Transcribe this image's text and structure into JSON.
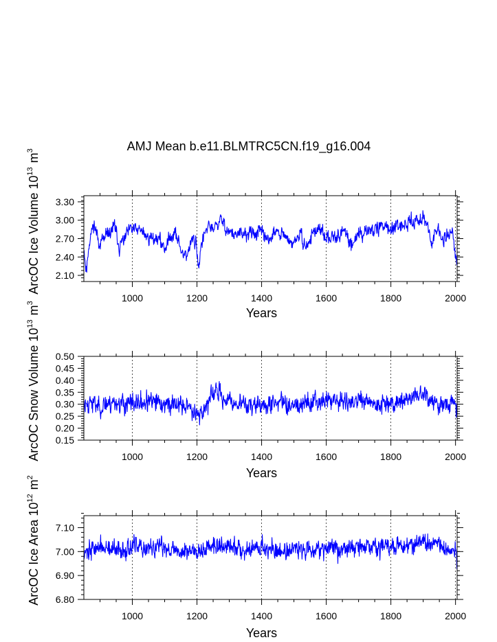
{
  "title": "AMJ Mean b.e11.BLMTRC5CN.f19_g16.004",
  "chart_data": [
    {
      "type": "line",
      "ylabel_main": "ArcOC Ice Volume 10",
      "ylabel_sup": "13",
      "ylabel_unit": "m",
      "ylabel_unit_sup": "3",
      "xlabel": "Years",
      "xlim": [
        850,
        2005
      ],
      "ylim": [
        2.0,
        3.4
      ],
      "xticks": [
        1000,
        1200,
        1400,
        1600,
        1800,
        2000
      ],
      "xtick_labels": [
        "1000",
        "1200",
        "1400",
        "1600",
        "1800",
        "2000"
      ],
      "yticks": [
        2.1,
        2.4,
        2.7,
        3.0,
        3.3
      ],
      "ytick_labels": [
        "2.10",
        "2.40",
        "2.70",
        "3.00",
        "3.30"
      ],
      "y_minor_step": 0.06,
      "line_color": "#0000ff",
      "series_name": "Ice Volume",
      "x_start": 850,
      "x_step": 1,
      "seed": 11,
      "anchors": [
        [
          850,
          2.55
        ],
        [
          855,
          2.3
        ],
        [
          858,
          2.15
        ],
        [
          865,
          2.6
        ],
        [
          880,
          2.95
        ],
        [
          900,
          2.62
        ],
        [
          920,
          2.72
        ],
        [
          945,
          2.9
        ],
        [
          960,
          2.55
        ],
        [
          985,
          2.8
        ],
        [
          1000,
          2.85
        ],
        [
          1025,
          2.82
        ],
        [
          1050,
          2.72
        ],
        [
          1080,
          2.7
        ],
        [
          1100,
          2.55
        ],
        [
          1130,
          2.85
        ],
        [
          1150,
          2.5
        ],
        [
          1170,
          2.45
        ],
        [
          1185,
          2.68
        ],
        [
          1198,
          2.65
        ],
        [
          1205,
          2.2
        ],
        [
          1212,
          2.6
        ],
        [
          1230,
          2.85
        ],
        [
          1260,
          2.9
        ],
        [
          1275,
          3.0
        ],
        [
          1300,
          2.8
        ],
        [
          1330,
          2.75
        ],
        [
          1360,
          2.78
        ],
        [
          1400,
          2.8
        ],
        [
          1420,
          2.7
        ],
        [
          1445,
          2.8
        ],
        [
          1470,
          2.75
        ],
        [
          1490,
          2.6
        ],
        [
          1520,
          2.75
        ],
        [
          1540,
          2.55
        ],
        [
          1560,
          2.82
        ],
        [
          1580,
          2.85
        ],
        [
          1600,
          2.65
        ],
        [
          1620,
          2.8
        ],
        [
          1640,
          2.75
        ],
        [
          1660,
          2.82
        ],
        [
          1680,
          2.6
        ],
        [
          1700,
          2.78
        ],
        [
          1720,
          2.8
        ],
        [
          1745,
          2.88
        ],
        [
          1760,
          2.85
        ],
        [
          1780,
          2.92
        ],
        [
          1800,
          2.86
        ],
        [
          1830,
          2.85
        ],
        [
          1860,
          3.0
        ],
        [
          1880,
          2.98
        ],
        [
          1900,
          3.1
        ],
        [
          1912,
          2.9
        ],
        [
          1925,
          2.7
        ],
        [
          1945,
          2.8
        ],
        [
          1960,
          2.7
        ],
        [
          1980,
          2.8
        ],
        [
          1990,
          2.85
        ],
        [
          1998,
          2.5
        ],
        [
          2005,
          2.25
        ]
      ],
      "noise": 0.1,
      "noise_fast": 0.05,
      "phi": 0.55,
      "clip": [
        2.12,
        3.3
      ]
    },
    {
      "type": "line",
      "ylabel_main": "ArcOC Snow Volume 10",
      "ylabel_sup": "13",
      "ylabel_unit": "m",
      "ylabel_unit_sup": "3",
      "xlabel": "Years",
      "xlim": [
        850,
        2005
      ],
      "ylim": [
        0.15,
        0.5
      ],
      "xticks": [
        1000,
        1200,
        1400,
        1600,
        1800,
        2000
      ],
      "xtick_labels": [
        "1000",
        "1200",
        "1400",
        "1600",
        "1800",
        "2000"
      ],
      "yticks": [
        0.15,
        0.2,
        0.25,
        0.3,
        0.35,
        0.4,
        0.45,
        0.5
      ],
      "ytick_labels": [
        "0.15",
        "0.20",
        "0.25",
        "0.30",
        "0.35",
        "0.40",
        "0.45",
        "0.50"
      ],
      "y_minor_step": 0.01,
      "line_color": "#0000ff",
      "series_name": "Snow Volume",
      "x_start": 850,
      "x_step": 1,
      "seed": 23,
      "anchors": [
        [
          850,
          0.3
        ],
        [
          870,
          0.31
        ],
        [
          900,
          0.29
        ],
        [
          940,
          0.31
        ],
        [
          980,
          0.3
        ],
        [
          1000,
          0.3
        ],
        [
          1050,
          0.31
        ],
        [
          1100,
          0.3
        ],
        [
          1150,
          0.3
        ],
        [
          1200,
          0.27
        ],
        [
          1210,
          0.25
        ],
        [
          1230,
          0.3
        ],
        [
          1260,
          0.36
        ],
        [
          1275,
          0.33
        ],
        [
          1300,
          0.31
        ],
        [
          1340,
          0.3
        ],
        [
          1380,
          0.3
        ],
        [
          1400,
          0.29
        ],
        [
          1450,
          0.31
        ],
        [
          1500,
          0.3
        ],
        [
          1550,
          0.31
        ],
        [
          1600,
          0.32
        ],
        [
          1650,
          0.31
        ],
        [
          1700,
          0.31
        ],
        [
          1750,
          0.3
        ],
        [
          1800,
          0.31
        ],
        [
          1850,
          0.32
        ],
        [
          1900,
          0.35
        ],
        [
          1920,
          0.31
        ],
        [
          1950,
          0.3
        ],
        [
          2000,
          0.3
        ],
        [
          2005,
          0.27
        ]
      ],
      "noise": 0.035,
      "noise_fast": 0.02,
      "phi": 0.4,
      "clip": [
        0.18,
        0.46
      ]
    },
    {
      "type": "line",
      "ylabel_main": "ArcOC Ice Area 10",
      "ylabel_sup": "12",
      "ylabel_unit": "m",
      "ylabel_unit_sup": "2",
      "xlabel": "Years",
      "xlim": [
        850,
        2005
      ],
      "ylim": [
        6.8,
        7.15
      ],
      "xticks": [
        1000,
        1200,
        1400,
        1600,
        1800,
        2000
      ],
      "xtick_labels": [
        "1000",
        "1200",
        "1400",
        "1600",
        "1800",
        "2000"
      ],
      "yticks": [
        6.8,
        6.9,
        7.0,
        7.1
      ],
      "ytick_labels": [
        "6.80",
        "6.90",
        "7.00",
        "7.10"
      ],
      "y_minor_step": 0.02,
      "line_color": "#0000ff",
      "series_name": "Ice Area",
      "x_start": 850,
      "x_step": 1,
      "seed": 37,
      "anchors": [
        [
          850,
          7.0
        ],
        [
          900,
          7.02
        ],
        [
          950,
          7.0
        ],
        [
          1000,
          7.02
        ],
        [
          1050,
          7.01
        ],
        [
          1100,
          7.02
        ],
        [
          1150,
          7.0
        ],
        [
          1200,
          7.01
        ],
        [
          1250,
          7.02
        ],
        [
          1300,
          7.02
        ],
        [
          1350,
          7.01
        ],
        [
          1400,
          7.02
        ],
        [
          1450,
          7.0
        ],
        [
          1500,
          7.01
        ],
        [
          1550,
          7.01
        ],
        [
          1600,
          7.02
        ],
        [
          1650,
          7.01
        ],
        [
          1700,
          7.02
        ],
        [
          1750,
          7.02
        ],
        [
          1800,
          7.02
        ],
        [
          1850,
          7.03
        ],
        [
          1900,
          7.04
        ],
        [
          1950,
          7.02
        ],
        [
          2000,
          7.0
        ],
        [
          2005,
          6.94
        ]
      ],
      "noise": 0.035,
      "noise_fast": 0.02,
      "phi": 0.3,
      "clip": [
        6.85,
        7.14
      ]
    }
  ]
}
